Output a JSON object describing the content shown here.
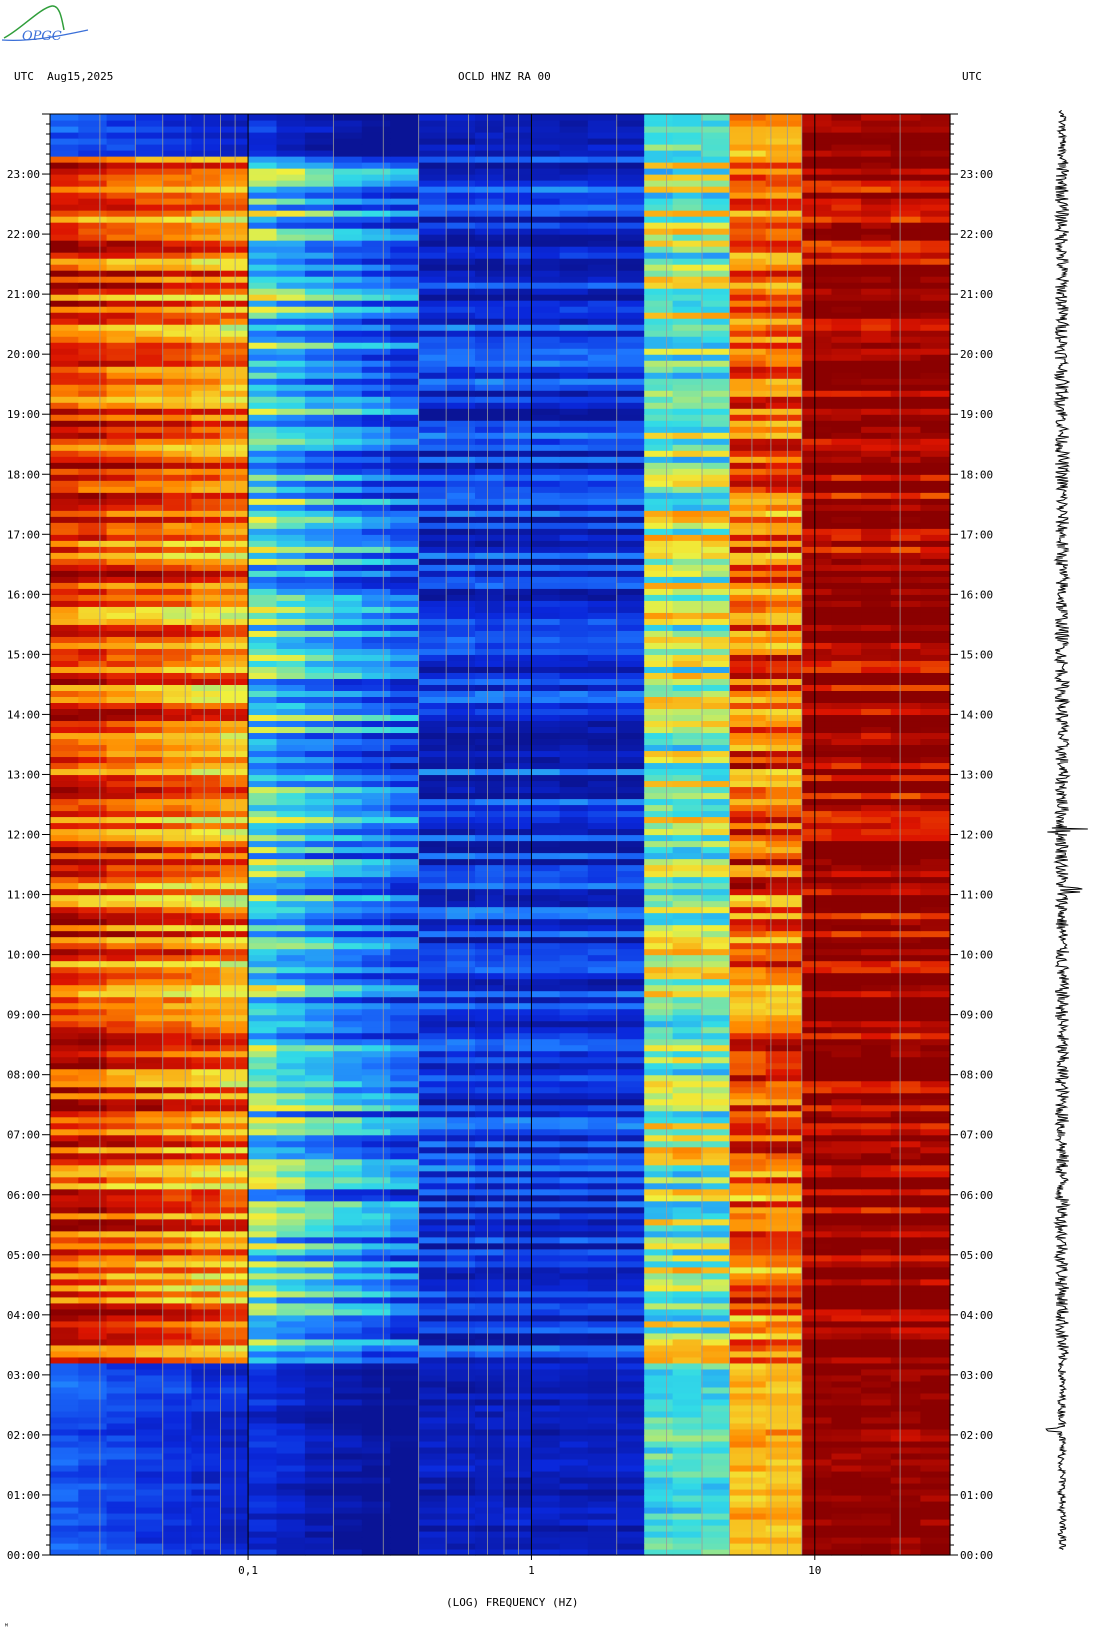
{
  "logo_text": "OPGC",
  "header": {
    "left_tz": "UTC",
    "date": "Aug15,2025",
    "station": "OCLD HNZ RA 00",
    "right_tz": "UTC"
  },
  "colors": {
    "low": "#0a1fb8",
    "mid_low": "#1e78ff",
    "mid": "#36e0e8",
    "mid_high": "#f4f040",
    "high": "#ff7a00",
    "max": "#8b0000",
    "logo_green": "#2f9e3a",
    "logo_blue": "#3a6fd8"
  },
  "footmark": "ᴹ",
  "chart_data": {
    "type": "heatmap",
    "title": "OCLD HNZ RA 00",
    "xlabel": "(LOG) FREQUENCY (HZ)",
    "ylabel": "UTC",
    "x_scale": "log",
    "xlim": [
      0.02,
      30
    ],
    "x_ticks": [
      {
        "value": 0.1,
        "label": "0,1"
      },
      {
        "value": 1,
        "label": "1"
      },
      {
        "value": 10,
        "label": "10"
      }
    ],
    "ylim": [
      "00:00",
      "24:00"
    ],
    "y_ticks": [
      "00:00",
      "01:00",
      "02:00",
      "03:00",
      "04:00",
      "05:00",
      "06:00",
      "07:00",
      "08:00",
      "09:00",
      "10:00",
      "11:00",
      "12:00",
      "13:00",
      "14:00",
      "15:00",
      "16:00",
      "17:00",
      "18:00",
      "19:00",
      "20:00",
      "21:00",
      "22:00",
      "23:00"
    ],
    "grid": true,
    "legend": "none",
    "bands": [
      {
        "fmin": 0.02,
        "fmax": 0.1,
        "level_quiet": 0.25,
        "level_active": 0.85
      },
      {
        "fmin": 0.1,
        "fmax": 0.4,
        "level_quiet": 0.15,
        "level_active": 0.45
      },
      {
        "fmin": 0.4,
        "fmax": 2.5,
        "level_quiet": 0.08,
        "level_active": 0.15
      },
      {
        "fmin": 2.5,
        "fmax": 5,
        "level_quiet": 0.45,
        "level_active": 0.55
      },
      {
        "fmin": 5,
        "fmax": 9,
        "level_quiet": 0.7,
        "level_active": 0.8
      },
      {
        "fmin": 9,
        "fmax": 30,
        "level_quiet": 1.0,
        "level_active": 1.0
      }
    ],
    "active_period": [
      "03:15",
      "23:15"
    ],
    "seismic_trace": {
      "time_range": [
        "00:00",
        "24:00"
      ],
      "notable_events": [
        "02:00",
        "11:00",
        "12:00"
      ]
    }
  }
}
